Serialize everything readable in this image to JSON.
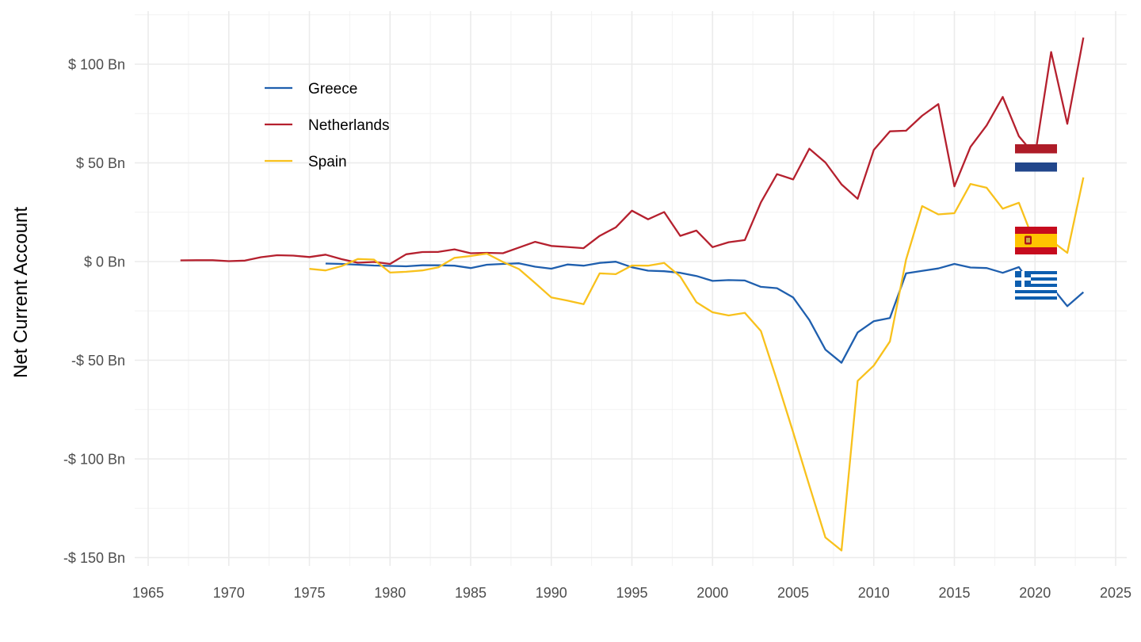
{
  "chart_data": {
    "type": "line",
    "xlabel": "",
    "ylabel": "Net Current Account",
    "xlim": [
      1964,
      2026
    ],
    "ylim": [
      -155,
      120
    ],
    "x_ticks": [
      1965,
      1970,
      1975,
      1980,
      1985,
      1990,
      1995,
      2000,
      2005,
      2010,
      2015,
      2020,
      2025
    ],
    "x_tick_labels": [
      "1965",
      "1970",
      "1975",
      "1980",
      "1985",
      "1990",
      "1995",
      "2000",
      "2005",
      "2010",
      "2015",
      "2020",
      "2025"
    ],
    "y_ticks": [
      100,
      50,
      0,
      -50,
      -100,
      -150
    ],
    "y_tick_labels": [
      "$ 100 Bn",
      "$ 50 Bn",
      "$ 0 Bn",
      "-$ 50 Bn",
      "-$ 100 Bn",
      "-$ 150 Bn"
    ],
    "grid": true,
    "legend_position": "top-left",
    "series": [
      {
        "name": "Greece",
        "color": "#1f5fae",
        "x": [
          1976,
          1977,
          1978,
          1979,
          1980,
          1981,
          1982,
          1983,
          1984,
          1985,
          1986,
          1987,
          1988,
          1989,
          1990,
          1991,
          1992,
          1993,
          1994,
          1995,
          1996,
          1997,
          1998,
          1999,
          2000,
          2001,
          2002,
          2003,
          2004,
          2005,
          2006,
          2007,
          2008,
          2009,
          2010,
          2011,
          2012,
          2013,
          2014,
          2015,
          2016,
          2017,
          2018,
          2019,
          2020,
          2021,
          2022,
          2023
        ],
        "values": [
          -1,
          -1.2,
          -1.6,
          -2,
          -2.2,
          -2.4,
          -1.9,
          -1.9,
          -2.1,
          -3.3,
          -1.6,
          -1.2,
          -0.9,
          -2.6,
          -3.6,
          -1.5,
          -2.1,
          -0.7,
          -0.1,
          -2.9,
          -4.6,
          -4.9,
          -5.7,
          -7.3,
          -9.8,
          -9.4,
          -9.6,
          -12.8,
          -13.5,
          -18.2,
          -29.6,
          -44.6,
          -51.3,
          -35.9,
          -30.2,
          -28.6,
          -6,
          -4.7,
          -3.5,
          -1.2,
          -3,
          -3.3,
          -5.7,
          -2.8,
          -14.6,
          -12.5,
          -22.6,
          -15.5
        ]
      },
      {
        "name": "Netherlands",
        "color": "#b5202e",
        "x": [
          1967,
          1968,
          1969,
          1970,
          1971,
          1972,
          1973,
          1974,
          1975,
          1976,
          1977,
          1978,
          1979,
          1980,
          1981,
          1982,
          1983,
          1984,
          1985,
          1986,
          1987,
          1988,
          1989,
          1990,
          1991,
          1992,
          1993,
          1994,
          1995,
          1996,
          1997,
          1998,
          1999,
          2000,
          2001,
          2002,
          2003,
          2004,
          2005,
          2006,
          2007,
          2008,
          2009,
          2010,
          2011,
          2012,
          2013,
          2014,
          2015,
          2016,
          2017,
          2018,
          2019,
          2020,
          2021,
          2022,
          2023
        ],
        "values": [
          0.6,
          0.7,
          0.7,
          0.2,
          0.5,
          2.2,
          3.2,
          3,
          2.3,
          3.5,
          1.2,
          -0.6,
          -0.2,
          -1.2,
          3.7,
          4.8,
          4.9,
          6.2,
          4.2,
          4.4,
          4.2,
          7.1,
          10,
          7.9,
          7.4,
          6.8,
          13,
          17.3,
          25.8,
          21.4,
          25.1,
          13,
          15.7,
          7.3,
          9.8,
          10.9,
          30,
          44.3,
          41.6,
          57.2,
          50.2,
          39.1,
          31.8,
          56.6,
          66,
          66.3,
          73.9,
          79.8,
          38.1,
          58.1,
          69,
          83.4,
          63.5,
          53.7,
          106.2,
          69.8,
          113.5
        ]
      },
      {
        "name": "Spain",
        "color": "#f8c11c",
        "x": [
          1975,
          1976,
          1977,
          1978,
          1979,
          1980,
          1981,
          1982,
          1983,
          1984,
          1985,
          1986,
          1987,
          1988,
          1989,
          1990,
          1991,
          1992,
          1993,
          1994,
          1995,
          1996,
          1997,
          1998,
          1999,
          2000,
          2001,
          2002,
          2003,
          2004,
          2005,
          2006,
          2007,
          2008,
          2009,
          2010,
          2011,
          2012,
          2013,
          2014,
          2015,
          2016,
          2017,
          2018,
          2019,
          2020,
          2021,
          2022,
          2023
        ],
        "values": [
          -3.7,
          -4.5,
          -2.3,
          1.3,
          1,
          -5.6,
          -5.2,
          -4.5,
          -2.9,
          1.9,
          2.8,
          4,
          -0.2,
          -3.8,
          -10.9,
          -18.2,
          -19.8,
          -21.6,
          -6,
          -6.4,
          -2,
          -2.1,
          -0.7,
          -7.6,
          -20.6,
          -25.7,
          -27.3,
          -26,
          -35.2,
          -60.3,
          -86.5,
          -113.5,
          -139.8,
          -146.4,
          -60.5,
          -52.7,
          -40.5,
          1,
          28.1,
          23.9,
          24.5,
          39.3,
          37.4,
          26.8,
          29.8,
          8.8,
          10.6,
          4.4,
          42.6
        ]
      }
    ],
    "flags": [
      {
        "country": "Netherlands",
        "colors": [
          "#ae1c28",
          "#ffffff",
          "#21468b"
        ]
      },
      {
        "country": "Spain",
        "colors": [
          "#c60b1e",
          "#ffc400",
          "#c60b1e"
        ]
      },
      {
        "country": "Greece",
        "colors": [
          "#0d5eaf",
          "#ffffff"
        ]
      }
    ]
  }
}
